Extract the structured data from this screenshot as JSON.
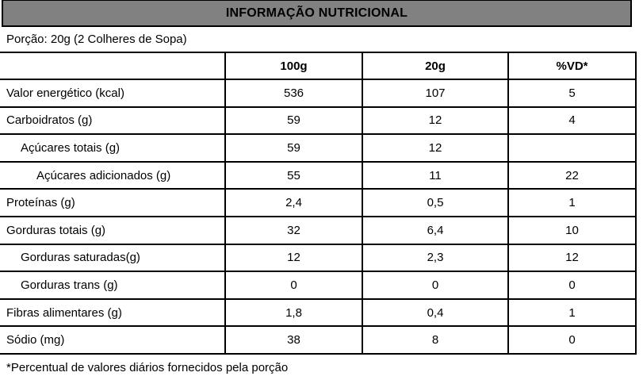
{
  "header": {
    "title": "INFORMAÇÃO NUTRICIONAL"
  },
  "portion": {
    "label": "Porção: 20g (2 Colheres de Sopa)"
  },
  "table": {
    "columns": [
      "",
      "100g",
      "20g",
      "%VD*"
    ],
    "rows": [
      {
        "label": "Valor energético (kcal)",
        "indent": 0,
        "v100": "536",
        "v20": "107",
        "vd": "5"
      },
      {
        "label": "Carboidratos (g)",
        "indent": 0,
        "v100": "59",
        "v20": "12",
        "vd": "4"
      },
      {
        "label": "Açúcares totais (g)",
        "indent": 1,
        "v100": "59",
        "v20": "12",
        "vd": ""
      },
      {
        "label": "Açúcares adicionados (g)",
        "indent": 2,
        "v100": "55",
        "v20": "11",
        "vd": "22"
      },
      {
        "label": "Proteínas (g)",
        "indent": 0,
        "v100": "2,4",
        "v20": "0,5",
        "vd": "1"
      },
      {
        "label": "Gorduras totais (g)",
        "indent": 0,
        "v100": "32",
        "v20": "6,4",
        "vd": "10"
      },
      {
        "label": "Gorduras saturadas(g)",
        "indent": 1,
        "v100": "12",
        "v20": "2,3",
        "vd": "12"
      },
      {
        "label": "Gorduras trans (g)",
        "indent": 1,
        "v100": "0",
        "v20": "0",
        "vd": "0"
      },
      {
        "label": "Fibras alimentares (g)",
        "indent": 0,
        "v100": "1,8",
        "v20": "0,4",
        "vd": "1"
      },
      {
        "label": "Sódio (mg)",
        "indent": 0,
        "v100": "38",
        "v20": "8",
        "vd": "0"
      }
    ]
  },
  "footnote": "*Percentual de valores diários fornecidos pela porção",
  "colors": {
    "title_bg": "#818181",
    "border": "#000000",
    "text": "#000000"
  }
}
